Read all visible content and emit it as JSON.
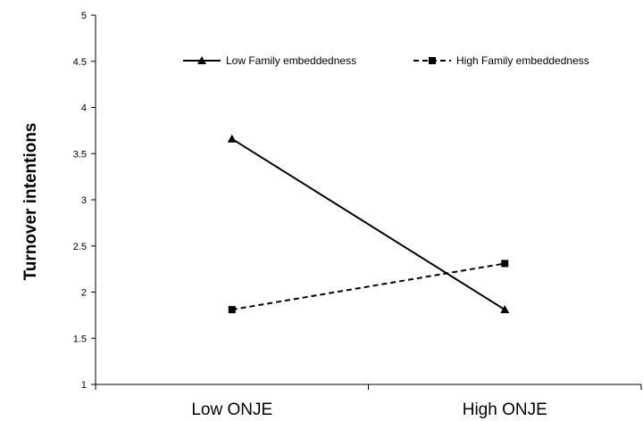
{
  "chart_data": {
    "type": "line",
    "categories": [
      "Low ONJE",
      "High ONJE"
    ],
    "ylabel": "Turnover intentions",
    "xlabel": "",
    "ylim": [
      1,
      5
    ],
    "yticks": [
      "1",
      "1.5",
      "2",
      "2.5",
      "3",
      "3.5",
      "4",
      "4.5",
      "5"
    ],
    "grid": false,
    "legend_position": "top",
    "series": [
      {
        "name": "Low Family embeddedness",
        "values": [
          3.66,
          1.81
        ],
        "marker": "triangle",
        "line_style": "solid",
        "color": "#000000"
      },
      {
        "name": "High Family embeddedness",
        "values": [
          1.81,
          2.31
        ],
        "marker": "square",
        "line_style": "dashed",
        "color": "#000000"
      }
    ]
  }
}
